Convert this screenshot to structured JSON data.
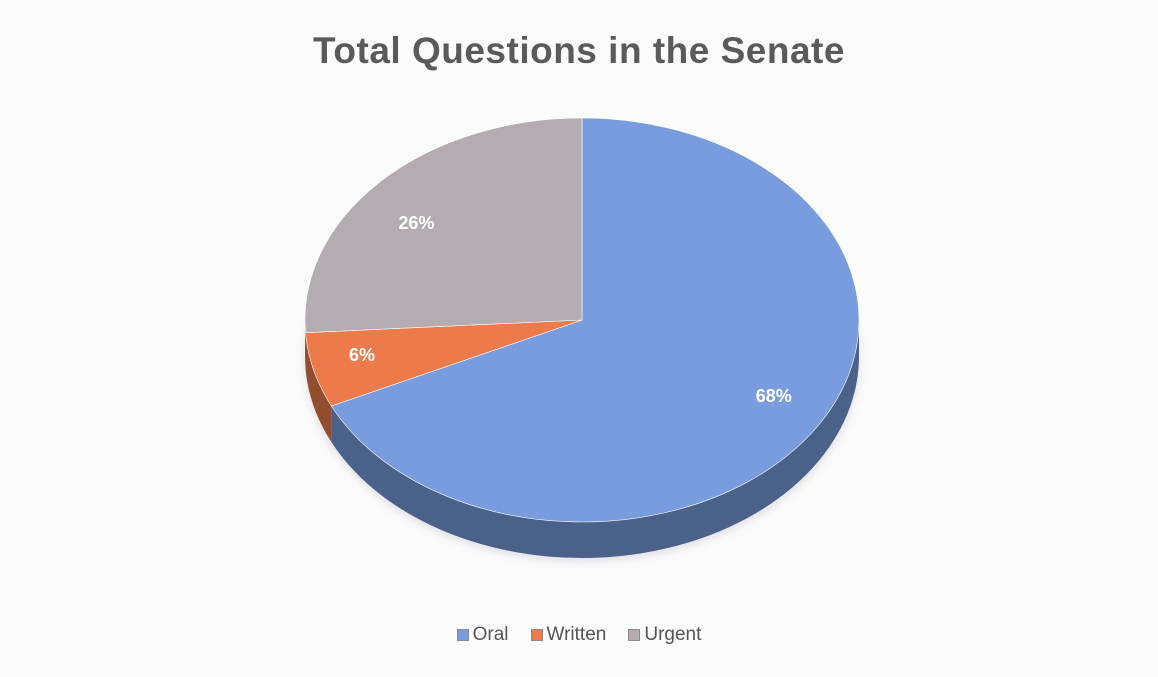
{
  "chart_data": {
    "type": "pie",
    "title": "Total Questions in the Senate",
    "slices": [
      {
        "name": "Oral",
        "value": 68,
        "label": "68%",
        "color": "#789cdd"
      },
      {
        "name": "Written",
        "value": 6,
        "label": "6%",
        "color": "#ec7a4a"
      },
      {
        "name": "Urgent",
        "value": 26,
        "label": "26%",
        "color": "#b5acb1"
      }
    ],
    "legend_position": "bottom",
    "style": "3d"
  }
}
